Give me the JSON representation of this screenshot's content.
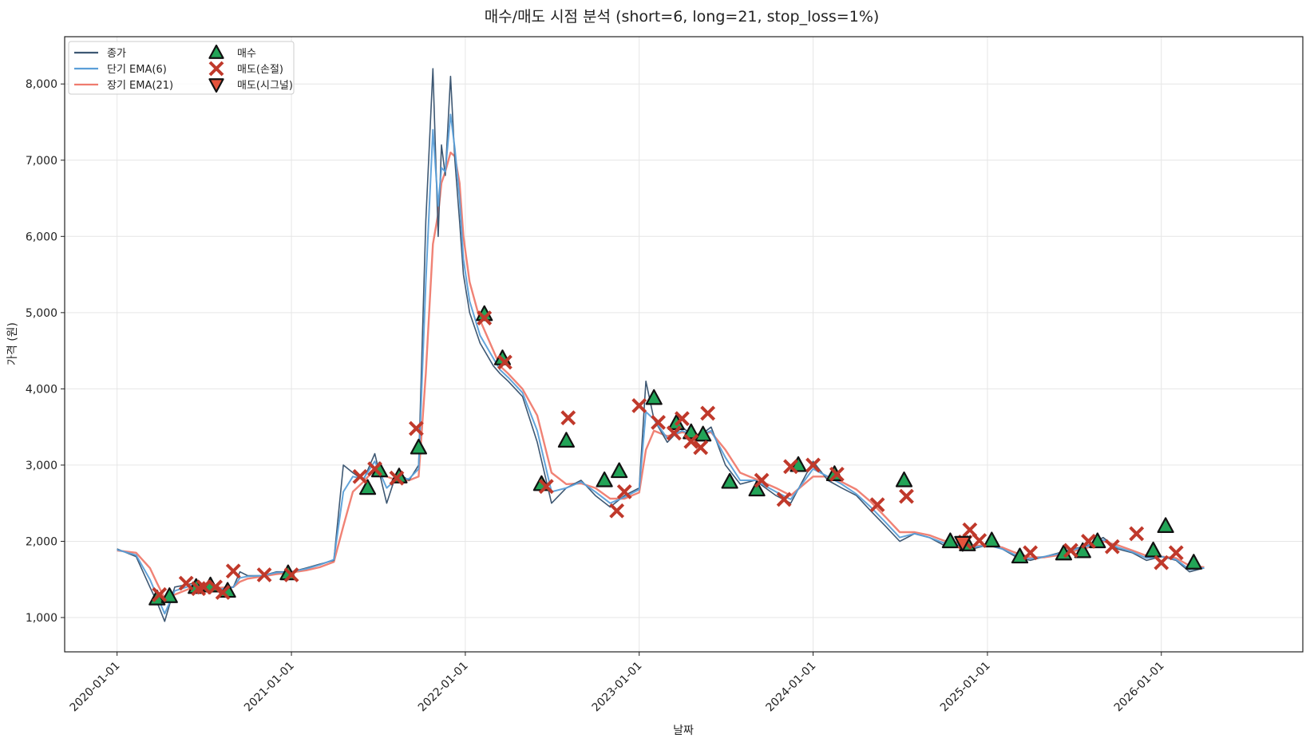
{
  "chart_data": {
    "type": "line",
    "title": "매수/매도 시점 분석 (short=6, long=21, stop_loss=1%)",
    "xlabel": "날짜",
    "ylabel": "가격 (원)",
    "xlim": [
      "2019-09-13",
      "2026-10-25"
    ],
    "ylim": [
      550,
      8620
    ],
    "grid": true,
    "legend_position": "top-left",
    "x_ticks": [
      "2020-01-01",
      "2021-01-01",
      "2022-01-01",
      "2023-01-01",
      "2024-01-01",
      "2025-01-01",
      "2026-01-01"
    ],
    "y_ticks": [
      1000,
      2000,
      3000,
      4000,
      5000,
      6000,
      7000,
      8000
    ],
    "y_tick_labels": [
      "1,000",
      "2,000",
      "3,000",
      "4,000",
      "5,000",
      "6,000",
      "7,000",
      "8,000"
    ],
    "colors": {
      "close": "#3e5873",
      "ema_short": "#5b9fd8",
      "ema_long": "#ef7b6e",
      "buy_fill": "#22a457",
      "sell_stop": "#c0392b",
      "sell_signal": "#e5533c",
      "grid": "#e6e6e6",
      "axis": "#222222"
    },
    "series": [
      {
        "name": "종가",
        "key": "close",
        "x": [
          "2020-01-01",
          "2020-02-10",
          "2020-03-10",
          "2020-03-25",
          "2020-04-10",
          "2020-05-01",
          "2020-06-10",
          "2020-07-10",
          "2020-08-01",
          "2020-09-01",
          "2020-09-15",
          "2020-10-01",
          "2020-11-01",
          "2020-12-01",
          "2021-01-01",
          "2021-02-01",
          "2021-03-01",
          "2021-03-31",
          "2021-04-20",
          "2021-05-10",
          "2021-06-01",
          "2021-06-25",
          "2021-07-20",
          "2021-08-10",
          "2021-09-05",
          "2021-09-25",
          "2021-10-10",
          "2021-10-25",
          "2021-11-05",
          "2021-11-12",
          "2021-11-20",
          "2021-12-01",
          "2021-12-10",
          "2021-12-20",
          "2021-12-28",
          "2022-01-10",
          "2022-02-01",
          "2022-03-01",
          "2022-03-15",
          "2022-04-01",
          "2022-05-01",
          "2022-06-01",
          "2022-07-01",
          "2022-08-01",
          "2022-09-01",
          "2022-10-01",
          "2022-11-01",
          "2022-12-01",
          "2023-01-01",
          "2023-01-15",
          "2023-02-01",
          "2023-03-01",
          "2023-04-01",
          "2023-05-01",
          "2023-06-01",
          "2023-07-01",
          "2023-08-01",
          "2023-09-01",
          "2023-10-15",
          "2023-11-15",
          "2024-01-01",
          "2024-02-01",
          "2024-03-01",
          "2024-04-01",
          "2024-05-01",
          "2024-06-01",
          "2024-07-01",
          "2024-08-01",
          "2024-09-01",
          "2024-10-01",
          "2024-11-01",
          "2024-12-01",
          "2025-01-01",
          "2025-02-01",
          "2025-03-01",
          "2025-04-01",
          "2025-05-01",
          "2025-06-01",
          "2025-07-01",
          "2025-08-01",
          "2025-09-01",
          "2025-10-01",
          "2025-11-01",
          "2025-12-01",
          "2026-01-01",
          "2026-02-01",
          "2026-03-01",
          "2026-04-01"
        ],
        "values": [
          1900,
          1800,
          1400,
          1200,
          950,
          1400,
          1450,
          1400,
          1350,
          1400,
          1600,
          1550,
          1550,
          1600,
          1600,
          1650,
          1700,
          1750,
          3000,
          2900,
          2800,
          3150,
          2500,
          2900,
          2800,
          3000,
          6200,
          8200,
          6000,
          7200,
          6800,
          8100,
          7000,
          6200,
          5500,
          5000,
          4600,
          4300,
          4200,
          4100,
          3900,
          3300,
          2500,
          2700,
          2800,
          2600,
          2450,
          2600,
          2700,
          4100,
          3600,
          3300,
          3500,
          3350,
          3500,
          3000,
          2750,
          2800,
          2600,
          2500,
          3050,
          2800,
          2700,
          2600,
          2400,
          2200,
          2000,
          2100,
          2050,
          1950,
          1950,
          1900,
          1950,
          1900,
          1800,
          1750,
          1800,
          1850,
          1900,
          1950,
          2050,
          1900,
          1850,
          1750,
          1800,
          1750,
          1600,
          1650
        ]
      },
      {
        "name": "단기 EMA(6)",
        "key": "ema_short",
        "x": [
          "2020-01-01",
          "2020-02-10",
          "2020-03-10",
          "2020-03-25",
          "2020-04-10",
          "2020-05-01",
          "2020-06-10",
          "2020-07-10",
          "2020-08-01",
          "2020-09-01",
          "2020-09-15",
          "2020-10-01",
          "2020-11-01",
          "2020-12-01",
          "2021-01-01",
          "2021-02-01",
          "2021-03-01",
          "2021-03-31",
          "2021-04-20",
          "2021-05-10",
          "2021-06-01",
          "2021-06-25",
          "2021-07-20",
          "2021-08-10",
          "2021-09-05",
          "2021-09-25",
          "2021-10-10",
          "2021-10-25",
          "2021-11-05",
          "2021-11-12",
          "2021-11-20",
          "2021-12-01",
          "2021-12-10",
          "2021-12-20",
          "2021-12-28",
          "2022-01-10",
          "2022-02-01",
          "2022-03-01",
          "2022-03-15",
          "2022-04-01",
          "2022-05-01",
          "2022-06-01",
          "2022-07-01",
          "2022-08-01",
          "2022-09-01",
          "2022-10-01",
          "2022-11-01",
          "2022-12-01",
          "2023-01-01",
          "2023-01-15",
          "2023-02-01",
          "2023-03-01",
          "2023-04-01",
          "2023-05-01",
          "2023-06-01",
          "2023-07-01",
          "2023-08-01",
          "2023-09-01",
          "2023-10-15",
          "2023-11-15",
          "2024-01-01",
          "2024-02-01",
          "2024-03-01",
          "2024-04-01",
          "2024-05-01",
          "2024-06-01",
          "2024-07-01",
          "2024-08-01",
          "2024-09-01",
          "2024-10-01",
          "2024-11-01",
          "2024-12-01",
          "2025-01-01",
          "2025-02-01",
          "2025-03-01",
          "2025-04-01",
          "2025-05-01",
          "2025-06-01",
          "2025-07-01",
          "2025-08-01",
          "2025-09-01",
          "2025-10-01",
          "2025-11-01",
          "2025-12-01",
          "2026-01-01",
          "2026-02-01",
          "2026-03-01",
          "2026-04-01"
        ],
        "values": [
          1890,
          1820,
          1500,
          1280,
          1050,
          1350,
          1430,
          1410,
          1370,
          1400,
          1520,
          1540,
          1550,
          1590,
          1600,
          1640,
          1690,
          1760,
          2650,
          2850,
          2820,
          3050,
          2700,
          2820,
          2820,
          2950,
          5400,
          7400,
          6400,
          6900,
          6850,
          7600,
          7150,
          6500,
          5700,
          5150,
          4700,
          4400,
          4250,
          4150,
          3950,
          3450,
          2650,
          2700,
          2780,
          2650,
          2500,
          2580,
          2680,
          3700,
          3600,
          3350,
          3450,
          3380,
          3450,
          3100,
          2800,
          2800,
          2650,
          2550,
          2950,
          2850,
          2750,
          2620,
          2450,
          2250,
          2050,
          2100,
          2050,
          1980,
          1960,
          1920,
          1950,
          1900,
          1820,
          1770,
          1800,
          1840,
          1890,
          1940,
          2020,
          1920,
          1860,
          1780,
          1800,
          1760,
          1630,
          1650
        ]
      },
      {
        "name": "장기 EMA(21)",
        "key": "ema_long",
        "x": [
          "2020-01-01",
          "2020-02-10",
          "2020-03-10",
          "2020-03-25",
          "2020-04-10",
          "2020-05-01",
          "2020-06-10",
          "2020-07-10",
          "2020-08-01",
          "2020-09-01",
          "2020-09-15",
          "2020-10-01",
          "2020-11-01",
          "2020-12-01",
          "2021-01-01",
          "2021-02-01",
          "2021-03-01",
          "2021-03-31",
          "2021-04-20",
          "2021-05-10",
          "2021-06-01",
          "2021-06-25",
          "2021-07-20",
          "2021-08-10",
          "2021-09-05",
          "2021-09-25",
          "2021-10-10",
          "2021-10-25",
          "2021-11-05",
          "2021-11-12",
          "2021-11-20",
          "2021-12-01",
          "2021-12-10",
          "2021-12-20",
          "2021-12-28",
          "2022-01-10",
          "2022-02-01",
          "2022-03-01",
          "2022-03-15",
          "2022-04-01",
          "2022-05-01",
          "2022-06-01",
          "2022-07-01",
          "2022-08-01",
          "2022-09-01",
          "2022-10-01",
          "2022-11-01",
          "2022-12-01",
          "2023-01-01",
          "2023-01-15",
          "2023-02-01",
          "2023-03-01",
          "2023-04-01",
          "2023-05-01",
          "2023-06-01",
          "2023-07-01",
          "2023-08-01",
          "2023-09-01",
          "2023-10-15",
          "2023-11-15",
          "2024-01-01",
          "2024-02-01",
          "2024-03-01",
          "2024-04-01",
          "2024-05-01",
          "2024-06-01",
          "2024-07-01",
          "2024-08-01",
          "2024-09-01",
          "2024-10-01",
          "2024-11-01",
          "2024-12-01",
          "2025-01-01",
          "2025-02-01",
          "2025-03-01",
          "2025-04-01",
          "2025-05-01",
          "2025-06-01",
          "2025-07-01",
          "2025-08-01",
          "2025-09-01",
          "2025-10-01",
          "2025-11-01",
          "2025-12-01",
          "2026-01-01",
          "2026-02-01",
          "2026-03-01",
          "2026-04-01"
        ],
        "values": [
          1880,
          1850,
          1650,
          1450,
          1250,
          1300,
          1400,
          1410,
          1390,
          1400,
          1470,
          1510,
          1540,
          1570,
          1590,
          1620,
          1660,
          1730,
          2200,
          2650,
          2780,
          2950,
          2850,
          2800,
          2800,
          2850,
          4200,
          5900,
          6300,
          6700,
          6850,
          7100,
          7050,
          6700,
          6000,
          5400,
          4900,
          4500,
          4300,
          4200,
          4000,
          3650,
          2900,
          2750,
          2760,
          2700,
          2560,
          2560,
          2640,
          3200,
          3450,
          3380,
          3430,
          3400,
          3430,
          3200,
          2900,
          2820,
          2700,
          2600,
          2850,
          2850,
          2780,
          2680,
          2520,
          2320,
          2120,
          2120,
          2080,
          2010,
          1980,
          1940,
          1950,
          1920,
          1850,
          1790,
          1790,
          1820,
          1870,
          1920,
          2000,
          1950,
          1880,
          1810,
          1800,
          1780,
          1680,
          1660
        ]
      }
    ],
    "markers": {
      "buy": {
        "name": "매수",
        "x": [
          "2020-03-25",
          "2020-04-20",
          "2020-06-15",
          "2020-07-15",
          "2020-08-20",
          "2020-12-25",
          "2021-06-10",
          "2021-07-05",
          "2021-08-15",
          "2021-09-25",
          "2022-02-10",
          "2022-03-20",
          "2022-06-10",
          "2022-08-01",
          "2022-10-20",
          "2022-11-20",
          "2023-02-01",
          "2023-03-20",
          "2023-04-20",
          "2023-05-15",
          "2023-07-10",
          "2023-09-05",
          "2023-12-01",
          "2024-02-15",
          "2024-07-10",
          "2024-10-15",
          "2024-11-20",
          "2025-01-10",
          "2025-03-10",
          "2025-06-10",
          "2025-07-20",
          "2025-08-20",
          "2025-12-15",
          "2026-01-10",
          "2026-03-10"
        ],
        "values": [
          1250,
          1280,
          1400,
          1420,
          1350,
          1580,
          2700,
          2930,
          2850,
          3230,
          4980,
          4400,
          2750,
          3320,
          2800,
          2920,
          3880,
          3550,
          3430,
          3400,
          2780,
          2680,
          3000,
          2880,
          2800,
          2000,
          1960,
          2010,
          1800,
          1840,
          1870,
          2000,
          1880,
          2200,
          1720
        ]
      },
      "sell_stop": {
        "name": "매도(손절)",
        "x": [
          "2020-03-30",
          "2020-05-25",
          "2020-06-20",
          "2020-07-01",
          "2020-07-25",
          "2020-08-10",
          "2020-09-01",
          "2020-11-05",
          "2021-01-01",
          "2021-05-25",
          "2021-06-25",
          "2021-08-10",
          "2021-09-20",
          "2022-02-10",
          "2022-03-25",
          "2022-06-20",
          "2022-08-05",
          "2022-11-15",
          "2022-12-01",
          "2023-01-01",
          "2023-02-10",
          "2023-03-15",
          "2023-04-01",
          "2023-04-20",
          "2023-05-10",
          "2023-05-25",
          "2023-09-15",
          "2023-11-01",
          "2023-11-15",
          "2024-01-01",
          "2024-02-20",
          "2024-05-15",
          "2024-07-15",
          "2024-11-15",
          "2024-11-25",
          "2024-12-15",
          "2025-04-01",
          "2025-06-25",
          "2025-08-01",
          "2025-09-20",
          "2025-11-10",
          "2026-01-01",
          "2026-02-01"
        ],
        "values": [
          1300,
          1450,
          1380,
          1400,
          1400,
          1330,
          1610,
          1560,
          1560,
          2850,
          2950,
          2830,
          3480,
          4930,
          4350,
          2720,
          3620,
          2400,
          2650,
          3780,
          3560,
          3420,
          3610,
          3310,
          3230,
          3680,
          2800,
          2550,
          2980,
          3000,
          2880,
          2480,
          2590,
          1990,
          2150,
          2010,
          1850,
          1880,
          2000,
          1930,
          2100,
          1720,
          1850
        ]
      },
      "sell_signal": {
        "name": "매도(시그널)",
        "x": [
          "2024-11-10"
        ],
        "values": [
          1980
        ]
      }
    }
  }
}
